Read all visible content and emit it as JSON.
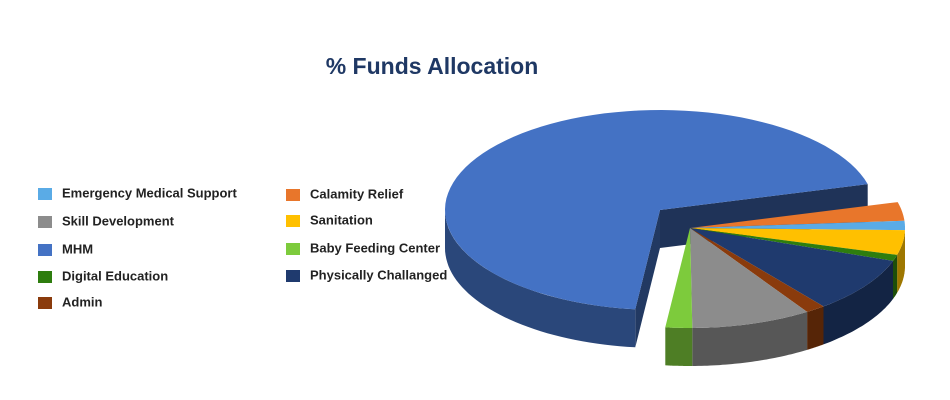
{
  "chart_data": {
    "type": "pie",
    "title": "% Funds  Allocation",
    "categories": [
      "Emergency Medical Support",
      "Skill Development",
      "MHM",
      "Digital  Education",
      "Admin",
      "Calamity Relief",
      "Sanitation",
      "Baby Feeding Center",
      "Physically Challanged"
    ],
    "values": [
      1.5,
      9,
      69,
      1,
      1.5,
      3,
      4,
      2,
      9
    ],
    "colors": [
      "#5aabe6",
      "#8c8c8c",
      "#4472c4",
      "#2e7d0e",
      "#8a3b0c",
      "#e8762b",
      "#ffc000",
      "#7dcb3c",
      "#1f3a6e"
    ]
  }
}
